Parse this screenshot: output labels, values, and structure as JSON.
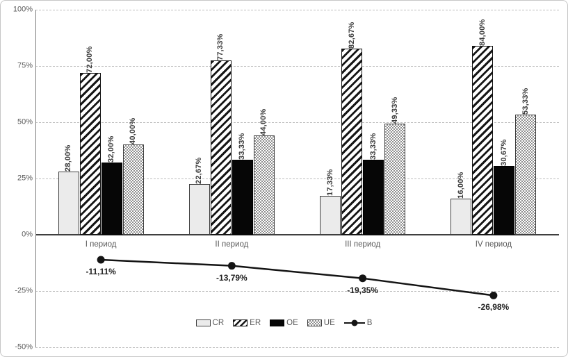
{
  "chart_data": {
    "type": "bar",
    "title": "",
    "categories": [
      "I период",
      "II период",
      "III период",
      "IV период"
    ],
    "bar_series": [
      {
        "name": "CR",
        "values": [
          28.0,
          22.67,
          17.33,
          16.0
        ],
        "labels": [
          "28,00%",
          "22,67%",
          "17,33%",
          "16,00%"
        ],
        "style": "light-solid"
      },
      {
        "name": "ER",
        "values": [
          72.0,
          77.33,
          82.67,
          84.0
        ],
        "labels": [
          "72,00%",
          "77,33%",
          "82,67%",
          "84,00%"
        ],
        "style": "diagonal-hatch"
      },
      {
        "name": "OE",
        "values": [
          32.0,
          33.33,
          33.33,
          30.67
        ],
        "labels": [
          "32,00%",
          "33,33%",
          "33,33%",
          "30,67%"
        ],
        "style": "black-solid"
      },
      {
        "name": "UE",
        "values": [
          40.0,
          44.0,
          49.33,
          53.33
        ],
        "labels": [
          "40,00%",
          "44,00%",
          "49,33%",
          "53,33%"
        ],
        "style": "checker"
      }
    ],
    "line_series": {
      "name": "B",
      "values": [
        -11.11,
        -13.79,
        -19.35,
        -26.98
      ],
      "labels": [
        "-11,11%",
        "-13,79%",
        "-19,35%",
        "-26,98%"
      ],
      "color": "#141414",
      "marker": "filled-circle"
    },
    "y_axis": {
      "min": -50,
      "max": 100,
      "step": 25,
      "ticks": [
        {
          "label": "100%",
          "value": 100
        },
        {
          "label": "75%",
          "value": 75
        },
        {
          "label": "50%",
          "value": 50
        },
        {
          "label": "25%",
          "value": 25
        },
        {
          "label": "0%",
          "value": 0
        },
        {
          "label": "-25%",
          "value": -25
        },
        {
          "label": "-50%",
          "value": -50
        }
      ]
    },
    "xlabel": "",
    "ylabel": "",
    "grid": "horizontal-dashed",
    "legend": {
      "position": "bottom-center",
      "entries": [
        "CR",
        "ER",
        "OE",
        "UE",
        "B"
      ]
    }
  },
  "colors": {
    "frame_border": "#c6c6c6",
    "grid": "#bdbdbd",
    "zero_axis": "#3f3f3f",
    "axis_text": "#595959",
    "value_text": "#3d3d3d",
    "line_value_text": "#1f1f1f",
    "light_fill": "#ebebeb",
    "black_fill": "#060606",
    "hatch_ink": "#161616",
    "checker_ink": "#8f8f8f",
    "line": "#141414"
  }
}
